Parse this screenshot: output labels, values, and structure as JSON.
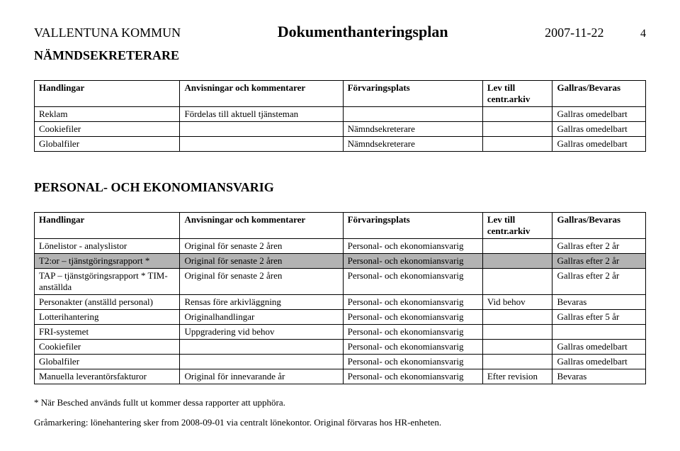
{
  "header": {
    "org": "VALLENTUNA KOMMUN",
    "title": "Dokumenthanteringsplan",
    "date": "2007-11-22",
    "page": "4"
  },
  "sub": "NÄMNDSEKRETERARE",
  "cols": {
    "a": "Handlingar",
    "b": "Anvisningar och kommentarer",
    "c": "Förvaringsplats",
    "d": "Lev till centr.arkiv",
    "e": "Gallras/Bevaras"
  },
  "t1": {
    "r0": {
      "a": "Reklam",
      "b": "Fördelas till aktuell tjänsteman",
      "c": "",
      "d": "",
      "e": "Gallras omedelbart"
    },
    "r1": {
      "a": "Cookiefiler",
      "b": "",
      "c": "Nämndsekreterare",
      "d": "",
      "e": "Gallras omedelbart"
    },
    "r2": {
      "a": "Globalfiler",
      "b": "",
      "c": "Nämndsekreterare",
      "d": "",
      "e": "Gallras omedelbart"
    }
  },
  "section2": "PERSONAL- OCH EKONOMIANSVARIG",
  "t2": {
    "r0": {
      "a": "Lönelistor - analyslistor",
      "b": "Original för senaste 2 åren",
      "c": "Personal- och ekonomiansvarig",
      "d": "",
      "e": "Gallras efter 2 år"
    },
    "r1": {
      "a": "T2:or – tjänstgöringsrapport *",
      "b": "Original för senaste 2 åren",
      "c": "Personal- och ekonomiansvarig",
      "d": "",
      "e": "Gallras efter 2 år"
    },
    "r2": {
      "a": "TAP – tjänstgöringsrapport * TIM-anställda",
      "b": "Original för senaste 2 åren",
      "c": "Personal- och ekonomiansvarig",
      "d": "",
      "e": "Gallras efter 2 år"
    },
    "r3": {
      "a": "Personakter (anställd personal)",
      "b": "Rensas före arkivläggning",
      "c": "Personal- och ekonomiansvarig",
      "d": "Vid behov",
      "e": "Bevaras"
    },
    "r4": {
      "a": "Lotterihantering",
      "b": "Originalhandlingar",
      "c": "Personal- och ekonomiansvarig",
      "d": "",
      "e": "Gallras efter 5 år"
    },
    "r5": {
      "a": "FRI-systemet",
      "b": "Uppgradering vid behov",
      "c": "Personal- och ekonomiansvarig",
      "d": "",
      "e": ""
    },
    "r6": {
      "a": "Cookiefiler",
      "b": "",
      "c": "Personal- och ekonomiansvarig",
      "d": "",
      "e": "Gallras omedelbart"
    },
    "r7": {
      "a": "Globalfiler",
      "b": "",
      "c": "Personal- och ekonomiansvarig",
      "d": "",
      "e": "Gallras omedelbart"
    },
    "r8": {
      "a": "Manuella leverantörsfakturor",
      "b": "Original för innevarande år",
      "c": "Personal- och ekonomiansvarig",
      "d": "Efter revision",
      "e": "Bevaras"
    }
  },
  "foot1": "* När Besched används fullt ut kommer dessa rapporter att upphöra.",
  "foot2": "Gråmarkering: lönehantering sker from 2008-09-01 via centralt lönekontor. Original förvaras hos HR-enheten."
}
